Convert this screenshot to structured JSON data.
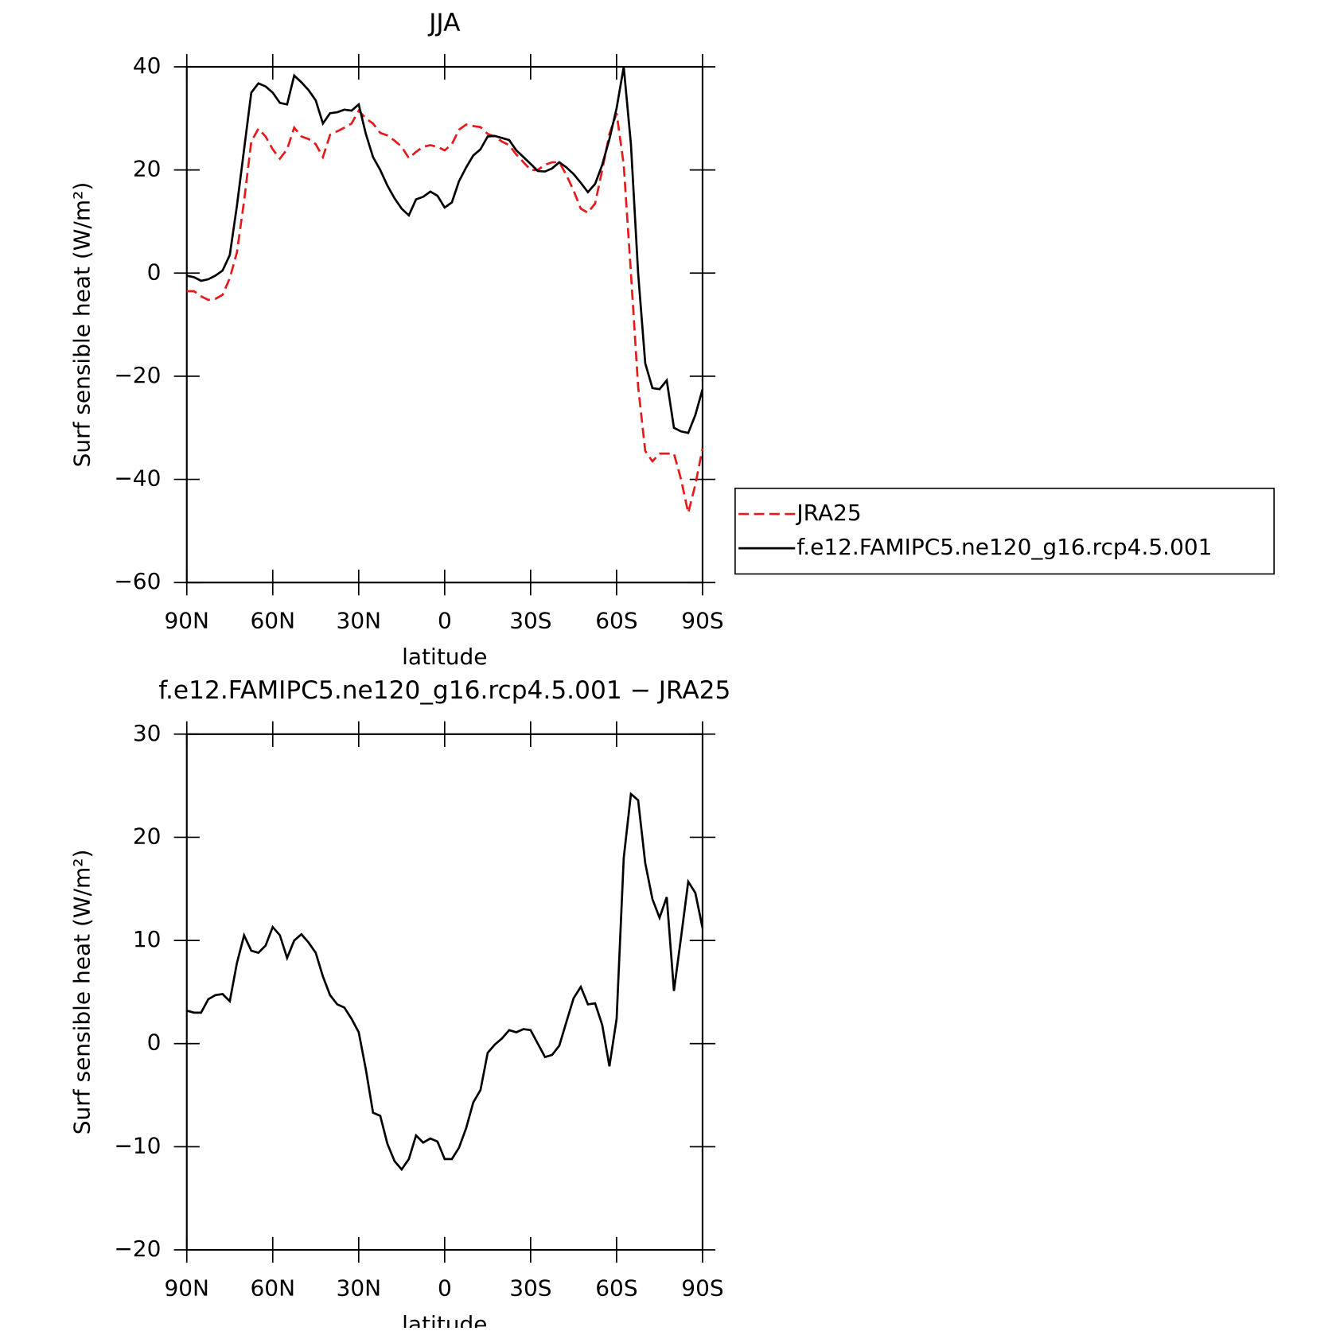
{
  "chart_data": [
    {
      "type": "line",
      "title": "JJA",
      "xlabel": "latitude",
      "ylabel": "Surf sensible heat (W/m²)",
      "x": [
        90,
        87.5,
        85,
        82.5,
        80,
        77.5,
        75,
        72.5,
        70,
        67.5,
        65,
        62.5,
        60,
        57.5,
        55,
        52.5,
        50,
        47.5,
        45,
        42.5,
        40,
        37.5,
        35,
        32.5,
        30,
        27.5,
        25,
        22.5,
        20,
        17.5,
        15,
        12.5,
        10,
        7.5,
        5,
        2.5,
        0,
        -2.5,
        -5,
        -7.5,
        -10,
        -12.5,
        -15,
        -17.5,
        -20,
        -22.5,
        -25,
        -27.5,
        -30,
        -32.5,
        -35,
        -37.5,
        -40,
        -42.5,
        -45,
        -47.5,
        -50,
        -52.5,
        -55,
        -57.5,
        -60,
        -62.5,
        -65,
        -67.5,
        -70,
        -72.5,
        -75,
        -77.5,
        -80,
        -82.5,
        -85,
        -87.5,
        -90
      ],
      "xlim": [
        90,
        -90
      ],
      "xticks": [
        {
          "value": 90,
          "label": "90N"
        },
        {
          "value": 60,
          "label": "60N"
        },
        {
          "value": 30,
          "label": "30N"
        },
        0,
        {
          "value": -30,
          "label": "30S"
        },
        {
          "value": -60,
          "label": "60S"
        },
        {
          "value": -90,
          "label": "90S"
        }
      ],
      "ylim": [
        -60,
        40
      ],
      "yticks": [
        {
          "value": -60,
          "label": "−60"
        },
        {
          "value": -40,
          "label": "−40"
        },
        {
          "value": -20,
          "label": "−20"
        },
        0,
        20,
        40
      ],
      "legend": "right",
      "series": [
        {
          "name": "JRA25",
          "color": "#e8191b",
          "line_style": "dashed",
          "values": [
            -3.5,
            -3.5,
            -4.5,
            -5.2,
            -5,
            -4.2,
            -1,
            4,
            14,
            25.5,
            28,
            26.5,
            24,
            22.2,
            24,
            28.2,
            26.5,
            26,
            25,
            22.5,
            26.8,
            27.5,
            28.2,
            29,
            31.5,
            30,
            29,
            27.2,
            26.7,
            25.7,
            24.5,
            22.3,
            23.5,
            24.5,
            24.8,
            24.5,
            23.8,
            25,
            27.8,
            28.8,
            28.5,
            28.3,
            27,
            26.5,
            25.5,
            24.8,
            23,
            21.5,
            20,
            20,
            21,
            21.5,
            21.5,
            19,
            16,
            12.5,
            11.7,
            13.5,
            20,
            27,
            31,
            21,
            0,
            -22,
            -34.5,
            -36.5,
            -35,
            -35,
            -35,
            -40,
            -46.5,
            -41,
            -34
          ]
        },
        {
          "name": "f.e12.FAMIPC5.ne120_g16.rcp4.5.001",
          "color": "#000000",
          "line_style": "solid",
          "values": [
            -0.5,
            -0.8,
            -1.5,
            -1.2,
            -0.5,
            0.5,
            3.5,
            13,
            24,
            35,
            36.8,
            36.2,
            35,
            33,
            32.7,
            38.3,
            37,
            35.5,
            33.5,
            29,
            31,
            31.2,
            31.7,
            31.5,
            32.7,
            27,
            22.5,
            20,
            17,
            14.5,
            12.5,
            11.2,
            14.3,
            14.8,
            15.8,
            15,
            12.7,
            13.7,
            17.8,
            20.5,
            22.8,
            24,
            26.5,
            26.6,
            26.2,
            25.8,
            23.8,
            22.5,
            21.2,
            19.8,
            19.7,
            20.3,
            21.5,
            20.5,
            19.2,
            17.5,
            15.7,
            17.3,
            21,
            26,
            32,
            40,
            25,
            0,
            -17.5,
            -22.3,
            -22.5,
            -20.8,
            -30,
            -30.7,
            -31,
            -27.5,
            -22.5
          ]
        }
      ]
    },
    {
      "type": "line",
      "title": "f.e12.FAMIPC5.ne120_g16.rcp4.5.001 − JRA25",
      "xlabel": "latitude",
      "ylabel": "Surf sensible heat (W/m²)",
      "x": [
        90,
        87.5,
        85,
        82.5,
        80,
        77.5,
        75,
        72.5,
        70,
        67.5,
        65,
        62.5,
        60,
        57.5,
        55,
        52.5,
        50,
        47.5,
        45,
        42.5,
        40,
        37.5,
        35,
        32.5,
        30,
        27.5,
        25,
        22.5,
        20,
        17.5,
        15,
        12.5,
        10,
        7.5,
        5,
        2.5,
        0,
        -2.5,
        -5,
        -7.5,
        -10,
        -12.5,
        -15,
        -17.5,
        -20,
        -22.5,
        -25,
        -27.5,
        -30,
        -32.5,
        -35,
        -37.5,
        -40,
        -42.5,
        -45,
        -47.5,
        -50,
        -52.5,
        -55,
        -57.5,
        -60,
        -62.5,
        -65,
        -67.5,
        -70,
        -72.5,
        -75,
        -77.5,
        -80,
        -82.5,
        -85,
        -87.5,
        -90
      ],
      "xlim": [
        90,
        -90
      ],
      "xticks": [
        {
          "value": 90,
          "label": "90N"
        },
        {
          "value": 60,
          "label": "60N"
        },
        {
          "value": 30,
          "label": "30N"
        },
        0,
        {
          "value": -30,
          "label": "30S"
        },
        {
          "value": -60,
          "label": "60S"
        },
        {
          "value": -90,
          "label": "90S"
        }
      ],
      "ylim": [
        -20,
        30
      ],
      "yticks": [
        {
          "value": -20,
          "label": "−20"
        },
        {
          "value": -10,
          "label": "−10"
        },
        0,
        10,
        20,
        30
      ],
      "series": [
        {
          "color": "#000000",
          "line_style": "solid",
          "values": [
            3.2,
            3,
            3,
            4.3,
            4.7,
            4.8,
            4.1,
            7.8,
            10.5,
            9,
            8.8,
            9.5,
            11.3,
            10.5,
            8.3,
            10,
            10.6,
            9.8,
            8.8,
            6.5,
            4.7,
            3.8,
            3.5,
            2.4,
            1.1,
            -2.5,
            -6.7,
            -7,
            -9.7,
            -11.4,
            -12.2,
            -11.2,
            -8.9,
            -9.6,
            -9.2,
            -9.5,
            -11.2,
            -11.2,
            -10.1,
            -8.2,
            -5.7,
            -4.5,
            -0.9,
            -0.1,
            0.5,
            1.3,
            1.1,
            1.4,
            1.3,
            0,
            -1.3,
            -1.1,
            -0.2,
            2.1,
            4.4,
            5.5,
            3.8,
            3.9,
            1.8,
            -2.2,
            2.4,
            18,
            24.2,
            23.6,
            17.5,
            14,
            12.2,
            14.2,
            5.1,
            10.3,
            15.7,
            14.6,
            11.2
          ]
        }
      ]
    }
  ]
}
